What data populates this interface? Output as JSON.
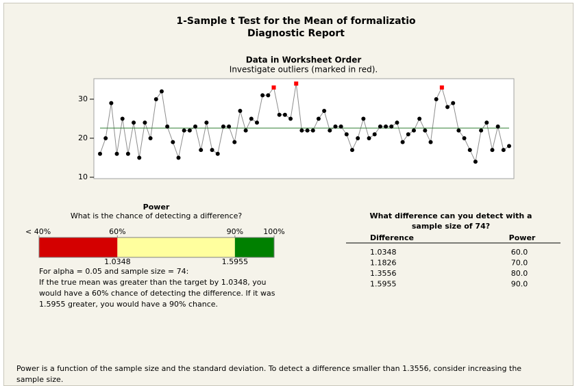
{
  "title": "1-Sample t Test for the Mean of formalizatio",
  "subtitle": "Diagnostic Report",
  "chart_data": {
    "type": "line",
    "title": "Data in Worksheet Order",
    "subtitle": "Investigate outliers (marked in red).",
    "values": [
      16,
      20,
      29,
      16,
      25,
      16,
      24,
      15,
      24,
      20,
      30,
      32,
      23,
      19,
      15,
      22,
      22,
      23,
      17,
      24,
      17,
      16,
      23,
      23,
      19,
      27,
      22,
      25,
      24,
      31,
      31,
      33,
      26,
      26,
      25,
      34,
      22,
      22,
      22,
      25,
      27,
      22,
      23,
      23,
      21,
      17,
      20,
      25,
      20,
      21,
      23,
      23,
      23,
      24,
      19,
      21,
      22,
      25,
      22,
      19,
      30,
      33,
      28,
      29,
      22,
      20,
      17,
      14,
      22,
      24,
      17,
      23,
      17,
      18
    ],
    "color": "#000000",
    "line_color": "#8c8c8c",
    "outlier_indices": [
      31,
      35,
      61
    ],
    "outlier_color": "#ff0000",
    "mean_line": 22.6,
    "mean_line_color": "#2e7d32",
    "ylim": [
      9.65,
      35.25
    ],
    "yticks": [
      10,
      20,
      30
    ]
  },
  "power": {
    "title": "Power",
    "question": "What is the chance of detecting a difference?",
    "scale": [
      40,
      100
    ],
    "ticks": [
      {
        "value": 40,
        "label": "< 40%"
      },
      {
        "value": 60,
        "label": "60%"
      },
      {
        "value": 90,
        "label": "90%"
      },
      {
        "value": 100,
        "label": "100%"
      }
    ],
    "segments": [
      {
        "from": 40,
        "to": 60,
        "color": "#d40000"
      },
      {
        "from": 60,
        "to": 90,
        "color": "#ffff9e"
      },
      {
        "from": 90,
        "to": 100,
        "color": "#008000"
      }
    ],
    "bar_labels": [
      {
        "power": 60,
        "label": "1.0348"
      },
      {
        "power": 90,
        "label": "1.5955"
      }
    ],
    "note_heading": "For alpha = 0.05 and sample size = 74:",
    "note": "If the true mean was greater than the target by 1.0348, you would have a 60% chance of detecting the difference. If it was 1.5955 greater, you would have a 90% chance."
  },
  "table": {
    "title": "What difference can you detect with a sample size of 74?",
    "headers": [
      "Difference",
      "Power"
    ],
    "rows": [
      [
        "1.0348",
        "60.0"
      ],
      [
        "1.1826",
        "70.0"
      ],
      [
        "1.3556",
        "80.0"
      ],
      [
        "1.5955",
        "90.0"
      ]
    ]
  },
  "footer": "Power is a function of the sample size and the standard deviation. To detect a difference smaller than 1.3556, consider increasing the sample size."
}
